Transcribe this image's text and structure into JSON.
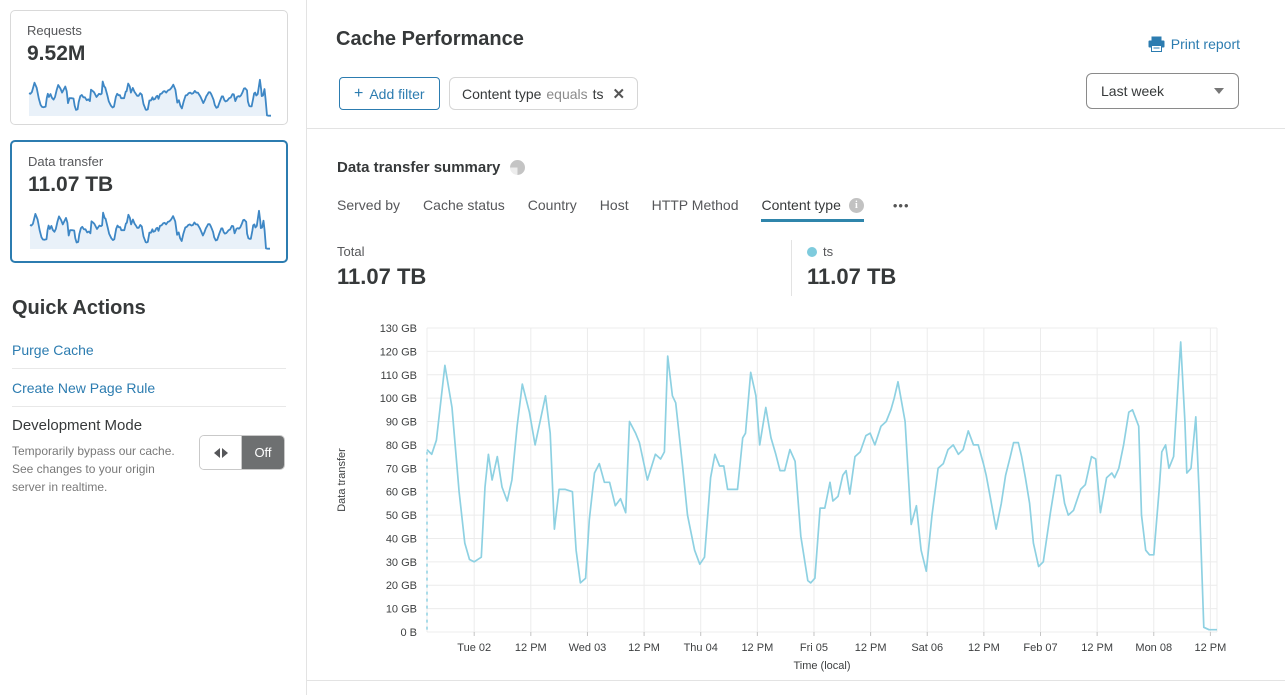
{
  "sidebar": {
    "cards": [
      {
        "label": "Requests",
        "value": "9.52M",
        "selected": false
      },
      {
        "label": "Data transfer",
        "value": "11.07 TB",
        "selected": true
      }
    ],
    "quick_actions_title": "Quick Actions",
    "links": [
      {
        "label": "Purge Cache"
      },
      {
        "label": "Create New Page Rule"
      }
    ],
    "development_mode": {
      "title": "Development Mode",
      "description": "Temporarily bypass our cache. See changes to your origin server in realtime.",
      "toggle_state": "Off"
    }
  },
  "header": {
    "title": "Cache Performance",
    "print_label": "Print report"
  },
  "filters": {
    "add_filter_plus": "+",
    "add_filter_label": "Add filter",
    "chip": {
      "field": "Content type",
      "operator": "equals",
      "value": "ts"
    },
    "close_icon": "✕",
    "range_selected": "Last week"
  },
  "summary": {
    "title": "Data transfer summary",
    "tabs": [
      {
        "label": "Served by",
        "active": false,
        "info": false
      },
      {
        "label": "Cache status",
        "active": false,
        "info": false
      },
      {
        "label": "Country",
        "active": false,
        "info": false
      },
      {
        "label": "Host",
        "active": false,
        "info": false
      },
      {
        "label": "HTTP Method",
        "active": false,
        "info": false
      },
      {
        "label": "Content type",
        "active": true,
        "info": true
      }
    ],
    "info_icon_glyph": "i",
    "more_icon": "•••",
    "total_label": "Total",
    "total_value": "11.07 TB",
    "legend": [
      {
        "label": "ts",
        "value": "11.07 TB",
        "color": "#7ecbdd"
      }
    ]
  },
  "chart_data": {
    "type": "line",
    "title": "Data transfer summary",
    "ylabel": "Data transfer",
    "xlabel": "Time (local)",
    "y_unit": "GB",
    "ylim": [
      0,
      130
    ],
    "grid": true,
    "y_ticks": [
      "0 B",
      "10 GB",
      "20 GB",
      "30 GB",
      "40 GB",
      "50 GB",
      "60 GB",
      "70 GB",
      "80 GB",
      "90 GB",
      "100 GB",
      "110 GB",
      "120 GB",
      "130 GB"
    ],
    "x_range_hours": [
      0,
      167.4
    ],
    "x_ticks": [
      {
        "hour": 10,
        "label": "Tue 02"
      },
      {
        "hour": 22,
        "label": "12 PM"
      },
      {
        "hour": 34,
        "label": "Wed 03"
      },
      {
        "hour": 46,
        "label": "12 PM"
      },
      {
        "hour": 58,
        "label": "Thu 04"
      },
      {
        "hour": 70,
        "label": "12 PM"
      },
      {
        "hour": 82,
        "label": "Fri 05"
      },
      {
        "hour": 94,
        "label": "12 PM"
      },
      {
        "hour": 106,
        "label": "Sat 06"
      },
      {
        "hour": 118,
        "label": "12 PM"
      },
      {
        "hour": 130,
        "label": "Feb 07"
      },
      {
        "hour": 142,
        "label": "12 PM"
      },
      {
        "hour": 154,
        "label": "Mon 08"
      },
      {
        "hour": 166,
        "label": "12 PM"
      }
    ],
    "start_dashed_marker": true,
    "series": [
      {
        "name": "ts",
        "total": "11.07 TB",
        "color": "#8ed1e2",
        "points": [
          [
            0,
            78
          ],
          [
            1,
            76
          ],
          [
            2,
            82
          ],
          [
            3.8,
            114
          ],
          [
            5.3,
            96
          ],
          [
            6.8,
            60
          ],
          [
            8,
            38
          ],
          [
            9,
            31
          ],
          [
            10,
            30
          ],
          [
            11.5,
            32
          ],
          [
            12.3,
            62
          ],
          [
            13,
            76
          ],
          [
            13.8,
            65
          ],
          [
            14.9,
            75
          ],
          [
            15.9,
            62
          ],
          [
            17,
            56
          ],
          [
            18,
            65
          ],
          [
            19.1,
            88
          ],
          [
            20.2,
            106
          ],
          [
            21.7,
            94
          ],
          [
            22.9,
            80
          ],
          [
            25.1,
            101
          ],
          [
            26.1,
            85
          ],
          [
            27,
            44
          ],
          [
            28,
            61
          ],
          [
            29.3,
            61
          ],
          [
            30.8,
            60
          ],
          [
            31.6,
            35
          ],
          [
            32.5,
            21
          ],
          [
            33.6,
            23
          ],
          [
            34.4,
            48
          ],
          [
            35.5,
            68
          ],
          [
            36.5,
            72
          ],
          [
            37.6,
            64
          ],
          [
            38.7,
            64
          ],
          [
            39.9,
            54
          ],
          [
            41,
            57
          ],
          [
            42.1,
            51
          ],
          [
            42.9,
            90
          ],
          [
            44.2,
            85
          ],
          [
            45,
            81
          ],
          [
            46.7,
            65
          ],
          [
            48.4,
            76
          ],
          [
            49.5,
            74
          ],
          [
            50.3,
            77
          ],
          [
            51,
            118
          ],
          [
            52,
            101
          ],
          [
            52.7,
            98
          ],
          [
            54.2,
            70
          ],
          [
            55.2,
            50
          ],
          [
            56.7,
            35
          ],
          [
            57.8,
            29
          ],
          [
            58.8,
            32
          ],
          [
            60.1,
            66
          ],
          [
            61,
            76
          ],
          [
            62,
            71
          ],
          [
            62.9,
            71
          ],
          [
            63.7,
            61
          ],
          [
            65,
            61
          ],
          [
            65.8,
            61
          ],
          [
            66.9,
            83
          ],
          [
            67.5,
            85
          ],
          [
            68.6,
            111
          ],
          [
            69.7,
            101
          ],
          [
            70.5,
            80
          ],
          [
            71.8,
            96
          ],
          [
            72.9,
            83
          ],
          [
            73.9,
            76
          ],
          [
            74.8,
            69
          ],
          [
            75.8,
            69
          ],
          [
            76.9,
            78
          ],
          [
            78,
            73
          ],
          [
            79.2,
            41
          ],
          [
            80.7,
            22
          ],
          [
            81.3,
            21
          ],
          [
            82.2,
            23
          ],
          [
            83.3,
            53
          ],
          [
            84.3,
            53
          ],
          [
            85.4,
            64
          ],
          [
            86,
            56
          ],
          [
            87.1,
            58
          ],
          [
            88.1,
            67
          ],
          [
            88.8,
            69
          ],
          [
            89.6,
            59
          ],
          [
            90.7,
            75
          ],
          [
            91.8,
            77
          ],
          [
            93,
            84
          ],
          [
            93.9,
            85
          ],
          [
            94.9,
            80
          ],
          [
            96.2,
            88
          ],
          [
            97.3,
            90
          ],
          [
            98.3,
            95
          ],
          [
            99,
            100
          ],
          [
            99.8,
            107
          ],
          [
            101.3,
            90
          ],
          [
            102.6,
            46
          ],
          [
            103.7,
            54
          ],
          [
            104.7,
            35
          ],
          [
            105.8,
            26
          ],
          [
            107,
            50
          ],
          [
            108.3,
            70
          ],
          [
            109.4,
            72
          ],
          [
            110.4,
            78
          ],
          [
            111.5,
            80
          ],
          [
            112.6,
            76
          ],
          [
            113.6,
            78
          ],
          [
            114.7,
            86
          ],
          [
            115.8,
            80
          ],
          [
            116.8,
            80
          ],
          [
            117.9,
            72
          ],
          [
            118.5,
            67
          ],
          [
            119.6,
            55
          ],
          [
            120.6,
            44
          ],
          [
            121.7,
            55
          ],
          [
            122.6,
            67
          ],
          [
            123.6,
            75
          ],
          [
            124.3,
            81
          ],
          [
            125.3,
            81
          ],
          [
            126,
            75
          ],
          [
            126.8,
            66
          ],
          [
            127.7,
            55
          ],
          [
            128.5,
            38
          ],
          [
            129.6,
            28
          ],
          [
            130.6,
            30
          ],
          [
            132.1,
            51
          ],
          [
            133.4,
            67
          ],
          [
            134.2,
            67
          ],
          [
            135.1,
            55
          ],
          [
            135.9,
            50
          ],
          [
            137,
            52
          ],
          [
            138.5,
            61
          ],
          [
            139.5,
            63
          ],
          [
            140.8,
            75
          ],
          [
            141.7,
            74
          ],
          [
            142.7,
            51
          ],
          [
            144,
            66
          ],
          [
            145.1,
            68
          ],
          [
            145.7,
            66
          ],
          [
            146.6,
            70
          ],
          [
            147.6,
            80
          ],
          [
            148.7,
            94
          ],
          [
            149.5,
            95
          ],
          [
            150.8,
            88
          ],
          [
            151.4,
            50
          ],
          [
            152.3,
            35
          ],
          [
            153.1,
            33
          ],
          [
            154,
            33
          ],
          [
            155.1,
            60
          ],
          [
            155.7,
            77
          ],
          [
            156.5,
            80
          ],
          [
            157.2,
            70
          ],
          [
            158.2,
            75
          ],
          [
            159.7,
            124
          ],
          [
            160.6,
            90
          ],
          [
            161,
            68
          ],
          [
            161.9,
            70
          ],
          [
            162.9,
            92
          ],
          [
            163.6,
            60
          ],
          [
            164.6,
            2
          ],
          [
            165.7,
            1
          ],
          [
            167.4,
            1
          ]
        ]
      }
    ]
  },
  "colors": {
    "accent": "#2c7cb0",
    "tab_underline": "#2f85ab",
    "chart_line": "#8ed1e2",
    "legend_dot": "#7ecbdd",
    "spark_line": "#3e87c5",
    "spark_fill": "#e9f1f9",
    "grid": "#ececec",
    "toggle_off_bg": "#6e7071"
  }
}
